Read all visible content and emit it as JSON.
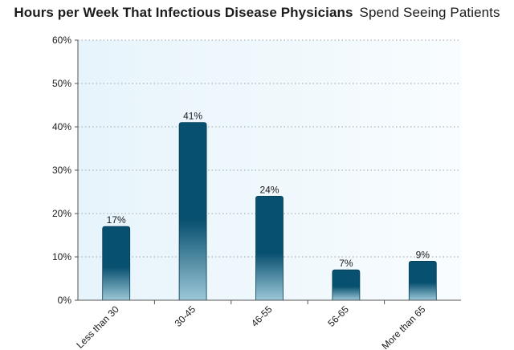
{
  "chart_data": {
    "type": "bar",
    "title": "Hours per Week That Infectious Disease Physicians",
    "subtitle": "Spend Seeing Patients",
    "categories": [
      "Less than 30",
      "30-45",
      "46-55",
      "56-65",
      "More than 65"
    ],
    "values": [
      17,
      41,
      24,
      7,
      9
    ],
    "value_labels": [
      "17%",
      "41%",
      "24%",
      "7%",
      "9%"
    ],
    "y_ticks": [
      0,
      10,
      20,
      30,
      40,
      50,
      60
    ],
    "y_tick_labels": [
      "0%",
      "10%",
      "20%",
      "30%",
      "40%",
      "50%",
      "60%"
    ],
    "ylim": [
      0,
      60
    ],
    "xlabel": "",
    "ylabel": "",
    "grid": true,
    "legend": "none",
    "colors": {
      "bar_top": "#08506f",
      "bar_bottom": "#9cc8d8",
      "plot_bg_start": "#e7f4fb",
      "plot_bg_end": "#f8fcfe",
      "grid": "#9aa6ad",
      "axis": "#555555"
    }
  }
}
